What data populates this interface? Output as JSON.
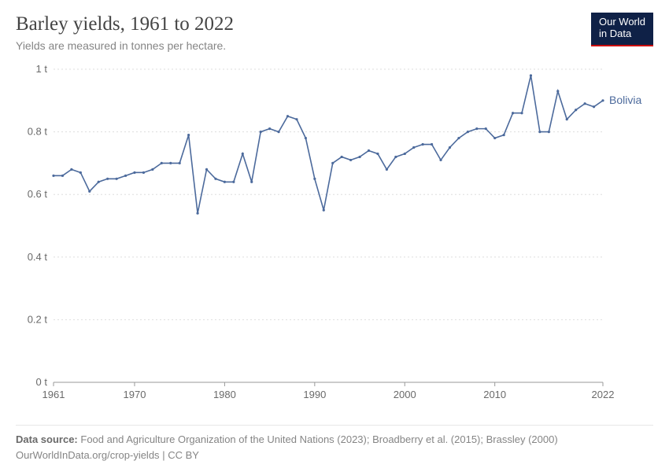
{
  "header": {
    "title": "Barley yields, 1961 to 2022",
    "subtitle": "Yields are measured in tonnes per hectare."
  },
  "logo": {
    "line1": "Our World",
    "line2": "in Data"
  },
  "chart": {
    "type": "line",
    "background_color": "#ffffff",
    "grid_color": "#dddddd",
    "axis_color": "#999999",
    "tick_label_color": "#6a6a6a",
    "tick_fontsize": 13,
    "x": {
      "min": 1961,
      "max": 2022,
      "ticks": [
        1961,
        1970,
        1980,
        1990,
        2000,
        2010,
        2022
      ]
    },
    "y": {
      "min": 0,
      "max": 1,
      "ticks": [
        0,
        0.2,
        0.4,
        0.6,
        0.8,
        1
      ],
      "tick_labels": [
        "0 t",
        "0.2 t",
        "0.4 t",
        "0.6 t",
        "0.8 t",
        "1 t"
      ]
    },
    "series": [
      {
        "name": "Bolivia",
        "label": "Bolivia",
        "color": "#4c6a9c",
        "line_width": 1.6,
        "marker_radius": 1.6,
        "years": [
          1961,
          1962,
          1963,
          1964,
          1965,
          1966,
          1967,
          1968,
          1969,
          1970,
          1971,
          1972,
          1973,
          1974,
          1975,
          1976,
          1977,
          1978,
          1979,
          1980,
          1981,
          1982,
          1983,
          1984,
          1985,
          1986,
          1987,
          1988,
          1989,
          1990,
          1991,
          1992,
          1993,
          1994,
          1995,
          1996,
          1997,
          1998,
          1999,
          2000,
          2001,
          2002,
          2003,
          2004,
          2005,
          2006,
          2007,
          2008,
          2009,
          2010,
          2011,
          2012,
          2013,
          2014,
          2015,
          2016,
          2017,
          2018,
          2019,
          2020,
          2021,
          2022
        ],
        "values": [
          0.66,
          0.66,
          0.68,
          0.67,
          0.61,
          0.64,
          0.65,
          0.65,
          0.66,
          0.67,
          0.67,
          0.68,
          0.7,
          0.7,
          0.7,
          0.79,
          0.54,
          0.68,
          0.65,
          0.64,
          0.64,
          0.73,
          0.64,
          0.8,
          0.81,
          0.8,
          0.85,
          0.84,
          0.78,
          0.65,
          0.55,
          0.7,
          0.72,
          0.71,
          0.72,
          0.74,
          0.73,
          0.68,
          0.72,
          0.73,
          0.75,
          0.76,
          0.76,
          0.71,
          0.75,
          0.78,
          0.8,
          0.81,
          0.81,
          0.78,
          0.79,
          0.86,
          0.86,
          0.98,
          0.8,
          0.8,
          0.93,
          0.84,
          0.87,
          0.89,
          0.88,
          0.9
        ]
      }
    ]
  },
  "footer": {
    "source_label": "Data source:",
    "source_text": "Food and Agriculture Organization of the United Nations (2023); Broadberry et al. (2015); Brassley (2000)",
    "link_text": "OurWorldInData.org/crop-yields",
    "license": "CC BY"
  }
}
